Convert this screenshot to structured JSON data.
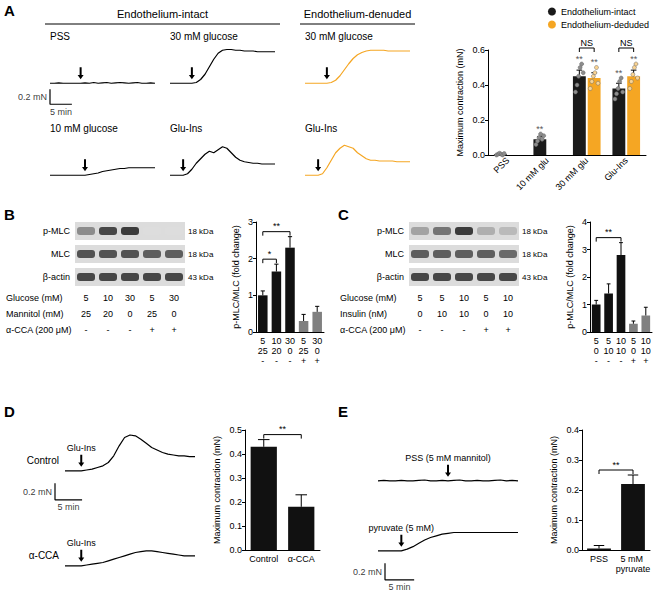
{
  "chart_data": [
    {
      "panel": "A",
      "type": "line",
      "x": [
        0,
        1,
        2,
        3,
        4,
        5,
        6,
        7,
        8,
        9,
        10,
        11,
        12,
        13,
        14,
        15,
        16,
        17,
        18,
        19,
        20,
        21,
        22,
        23,
        24
      ],
      "xlim": [
        0,
        24
      ],
      "ylim": [
        -0.05,
        0.55
      ],
      "tick_labels": false,
      "groups": [
        "Endothelium-intact",
        "Endothelium-denuded"
      ],
      "scale_bar": {
        "x": 5,
        "x_label": "5 min",
        "y": 0.2,
        "y_label": "0.2 mN"
      },
      "series": [
        {
          "name": "PSS",
          "group": "Endothelium-intact",
          "color": "#000000",
          "arrow_at": 7,
          "values": [
            0,
            0,
            0.005,
            0,
            0,
            0,
            0,
            0,
            0.005,
            0,
            0.01,
            0,
            0.005,
            0.01,
            0,
            0.005,
            0.01,
            0.005,
            0,
            0.005,
            0.01,
            0,
            0,
            0.005,
            0
          ]
        },
        {
          "name": "30 mM glucose",
          "group": "Endothelium-intact",
          "color": "#000000",
          "arrow_at": 5,
          "values": [
            0,
            0,
            0,
            0,
            0,
            0,
            0.01,
            0.05,
            0.12,
            0.22,
            0.32,
            0.4,
            0.44,
            0.45,
            0.45,
            0.44,
            0.44,
            0.43,
            0.43,
            0.43,
            0.42,
            0.42,
            0.42,
            0.42,
            0.42
          ]
        },
        {
          "name": "10 mM glucose",
          "group": "Endothelium-intact",
          "color": "#000000",
          "arrow_at": 8,
          "values": [
            0,
            0,
            0,
            0,
            0,
            0,
            0,
            0,
            0,
            0.01,
            0.02,
            0.03,
            0.05,
            0.06,
            0.07,
            0.08,
            0.09,
            0.09,
            0.1,
            0.1,
            0.1,
            0.1,
            0.1,
            0.1,
            0.1
          ]
        },
        {
          "name": "Glu-Ins",
          "group": "Endothelium-intact",
          "color": "#000000",
          "arrow_at": 3,
          "values": [
            0,
            0,
            0,
            0,
            0.02,
            0.08,
            0.16,
            0.22,
            0.28,
            0.32,
            0.3,
            0.34,
            0.38,
            0.36,
            0.3,
            0.24,
            0.2,
            0.18,
            0.17,
            0.16,
            0.16,
            0.15,
            0.15,
            0.15,
            0.15
          ]
        },
        {
          "name": "30 mM glucose",
          "group": "Endothelium-denuded",
          "color": "#f5a623",
          "arrow_at": 5,
          "values": [
            0,
            0,
            0,
            0,
            0,
            0,
            0.01,
            0.04,
            0.1,
            0.18,
            0.26,
            0.33,
            0.38,
            0.41,
            0.43,
            0.44,
            0.44,
            0.44,
            0.44,
            0.43,
            0.43,
            0.43,
            0.43,
            0.43,
            0.43
          ]
        },
        {
          "name": "Glu-Ins",
          "group": "Endothelium-denuded",
          "color": "#f5a623",
          "arrow_at": 3,
          "values": [
            0,
            0,
            0,
            0,
            0.02,
            0.1,
            0.2,
            0.3,
            0.36,
            0.4,
            0.38,
            0.36,
            0.3,
            0.26,
            0.22,
            0.2,
            0.2,
            0.19,
            0.19,
            0.19,
            0.19,
            0.18,
            0.18,
            0.18,
            0.18
          ]
        }
      ]
    },
    {
      "panel": "A",
      "type": "bar",
      "ylabel": "Maximum contraction (mN)",
      "categories": [
        "PSS",
        "10 mM glu",
        "30 mM glu",
        "Glu-Ins"
      ],
      "ylim": [
        0,
        0.6
      ],
      "yticks": [
        {
          "value": 0,
          "label": "0.0"
        },
        0.2,
        0.4,
        0.6
      ],
      "grid": false,
      "legend": "top-right",
      "series": [
        {
          "name": "Endothelium-intact",
          "color": "#1a1a1a",
          "values": [
            0.005,
            0.09,
            0.45,
            0.38
          ],
          "errors": [
            0.003,
            0.015,
            0.035,
            0.03
          ],
          "points": [
            [
              0,
              0.005,
              0.01,
              0.005,
              0,
              0.008
            ],
            [
              0.06,
              0.08,
              0.1,
              0.12,
              0.09,
              0.11
            ],
            [
              0.36,
              0.4,
              0.45,
              0.5,
              0.52,
              0.47
            ],
            [
              0.32,
              0.35,
              0.38,
              0.42,
              0.44,
              0.36
            ]
          ],
          "annotations": [
            null,
            "**",
            "**",
            "**"
          ]
        },
        {
          "name": "Endothelium-deduded",
          "color": "#f5a623",
          "values": [
            null,
            null,
            0.44,
            0.45
          ],
          "errors": [
            null,
            null,
            0.03,
            0.035
          ],
          "points": [
            null,
            null,
            [
              0.38,
              0.42,
              0.45,
              0.47,
              0.5,
              0.41
            ],
            [
              0.38,
              0.42,
              0.46,
              0.5,
              0.52,
              0.44
            ]
          ],
          "annotations": [
            null,
            null,
            "**",
            "**"
          ]
        }
      ],
      "brackets": [
        {
          "from": "30 mM glu",
          "to": "30 mM glu",
          "series": [
            "Endothelium-intact",
            "Endothelium-deduded"
          ],
          "text": "NS"
        },
        {
          "from": "Glu-Ins",
          "to": "Glu-Ins",
          "series": [
            "Endothelium-intact",
            "Endothelium-deduded"
          ],
          "text": "NS"
        }
      ]
    },
    {
      "panel": "B",
      "type": "blot",
      "rows": [
        {
          "label": "p-MLC",
          "size": "18 kDa",
          "bands": [
            0.5,
            0.8,
            0.85,
            0.15,
            0.15
          ]
        },
        {
          "label": "MLC",
          "size": "18 kDa",
          "bands": [
            0.75,
            0.75,
            0.75,
            0.7,
            0.7
          ]
        },
        {
          "label": "β-actin",
          "size": "43 kDa",
          "bands": [
            0.8,
            0.8,
            0.8,
            0.8,
            0.8
          ]
        }
      ],
      "conditions": [
        {
          "label": "Glucose (mM)",
          "cells": [
            "5",
            "10",
            "30",
            "5",
            "30"
          ]
        },
        {
          "label": "Mannitol (mM)",
          "cells": [
            "25",
            "20",
            "0",
            "25",
            "0"
          ]
        },
        {
          "label": "α-CCA (200 μM)",
          "cells": [
            "-",
            "-",
            "-",
            "+",
            "+"
          ]
        }
      ]
    },
    {
      "panel": "B",
      "type": "bar",
      "ylabel": "p-MLC/MLC (fold change)",
      "categories": [
        "5\n25\n-",
        "10\n20\n-",
        "30\n0\n-",
        "5\n25\n+",
        "30\n0\n+"
      ],
      "values": [
        1.0,
        1.65,
        2.3,
        0.3,
        0.55
      ],
      "errors": [
        0.12,
        0.2,
        0.3,
        0.18,
        0.15
      ],
      "colors": [
        "#111111",
        "#111111",
        "#111111",
        "#808080",
        "#808080"
      ],
      "ylim": [
        0,
        3
      ],
      "yticks": [
        0,
        1,
        2,
        3
      ],
      "grid": false,
      "brackets": [
        {
          "from": "5\n25\n-",
          "to": "10\n20\n-",
          "text": "*"
        },
        {
          "from": "5\n25\n-",
          "to": "30\n0\n-",
          "text": "**"
        }
      ]
    },
    {
      "panel": "C",
      "type": "blot",
      "rows": [
        {
          "label": "p-MLC",
          "size": "18 kDa",
          "bands": [
            0.4,
            0.6,
            0.85,
            0.35,
            0.3
          ]
        },
        {
          "label": "MLC",
          "size": "18 kDa",
          "bands": [
            0.7,
            0.7,
            0.7,
            0.7,
            0.65
          ]
        },
        {
          "label": "β-actin",
          "size": "43 kDa",
          "bands": [
            0.8,
            0.8,
            0.8,
            0.8,
            0.8
          ]
        }
      ],
      "conditions": [
        {
          "label": "Glucose (mM)",
          "cells": [
            "5",
            "5",
            "10",
            "5",
            "10"
          ]
        },
        {
          "label": "Insulin (nM)",
          "cells": [
            "0",
            "10",
            "10",
            "0",
            "10"
          ]
        },
        {
          "label": "α-CCA (200 μM)",
          "cells": [
            "-",
            "-",
            "-",
            "+",
            "+"
          ]
        }
      ]
    },
    {
      "panel": "C",
      "type": "bar",
      "ylabel": "p-MLC/MLC (fold change)",
      "categories": [
        "5\n0\n-",
        "5\n10\n-",
        "10\n10\n-",
        "5\n0\n+",
        "10\n10\n+"
      ],
      "values": [
        1.0,
        1.4,
        2.8,
        0.3,
        0.6
      ],
      "errors": [
        0.15,
        0.35,
        0.45,
        0.1,
        0.3
      ],
      "colors": [
        "#111111",
        "#111111",
        "#111111",
        "#808080",
        "#808080"
      ],
      "ylim": [
        0,
        4
      ],
      "yticks": [
        0,
        1,
        2,
        3,
        4
      ],
      "grid": false,
      "brackets": [
        {
          "from": "5\n0\n-",
          "to": "10\n10\n-",
          "text": "**"
        }
      ]
    },
    {
      "panel": "D",
      "type": "line",
      "x": [
        0,
        1,
        2,
        3,
        4,
        5,
        6,
        7,
        8,
        9,
        10,
        11,
        12,
        13,
        14,
        15,
        16,
        17,
        18,
        19,
        20,
        21,
        22,
        23,
        24
      ],
      "xlim": [
        0,
        24
      ],
      "ylim": [
        -0.05,
        0.55
      ],
      "tick_labels": false,
      "scale_bar": {
        "x": 5,
        "x_label": "5 min",
        "y": 0.2,
        "y_label": "0.2 mN"
      },
      "series": [
        {
          "name": "Control",
          "arrow_label": "Glu-Ins",
          "color": "#000000",
          "arrow_at": 3,
          "values": [
            0,
            0,
            0,
            0,
            0.01,
            0.02,
            0.04,
            0.06,
            0.1,
            0.18,
            0.3,
            0.4,
            0.43,
            0.42,
            0.38,
            0.33,
            0.28,
            0.25,
            0.22,
            0.2,
            0.19,
            0.18,
            0.18,
            0.17,
            0.17
          ]
        },
        {
          "name": "α-CCA",
          "arrow_label": "Glu-Ins",
          "color": "#000000",
          "arrow_at": 3,
          "values": [
            0,
            0,
            0,
            0,
            0.01,
            0.02,
            0.03,
            0.04,
            0.06,
            0.08,
            0.1,
            0.12,
            0.14,
            0.16,
            0.17,
            0.18,
            0.18,
            0.17,
            0.16,
            0.15,
            0.14,
            0.13,
            0.12,
            0.12,
            0.12
          ]
        }
      ]
    },
    {
      "panel": "D",
      "type": "bar",
      "ylabel": "Maximum contraction (mN)",
      "categories": [
        "Control",
        "α-CCA"
      ],
      "values": [
        0.43,
        0.18
      ],
      "errors": [
        0.03,
        0.05
      ],
      "color": "#111111",
      "ylim": [
        0,
        0.5
      ],
      "yticks": [
        {
          "value": 0,
          "label": "0.0"
        },
        0.1,
        0.2,
        0.3,
        0.4,
        0.5
      ],
      "grid": false,
      "brackets": [
        {
          "from": "Control",
          "to": "α-CCA",
          "text": "**"
        }
      ]
    },
    {
      "panel": "E",
      "type": "line",
      "x": [
        0,
        1,
        2,
        3,
        4,
        5,
        6,
        7,
        8,
        9,
        10,
        11,
        12,
        13,
        14,
        15,
        16,
        17,
        18,
        19,
        20,
        21,
        22,
        23,
        24
      ],
      "xlim": [
        0,
        24
      ],
      "ylim": [
        -0.05,
        0.55
      ],
      "tick_labels": false,
      "scale_bar": {
        "x": 5,
        "x_label": "5 min",
        "y": 0.2,
        "y_label": "0.2 mN"
      },
      "series": [
        {
          "arrow_label": "PSS (5 mM mannitol)",
          "color": "#000000",
          "arrow_at": 12,
          "values": [
            0,
            0.005,
            0,
            0,
            0.005,
            0,
            0,
            0.005,
            0.01,
            0,
            0,
            0.005,
            0,
            0.005,
            0.01,
            0,
            0,
            0.005,
            0,
            0,
            0.005,
            0.01,
            0,
            0.005,
            0
          ]
        },
        {
          "arrow_label": "pyruvate (5 mM)",
          "color": "#000000",
          "arrow_at": 4,
          "values": [
            0,
            0,
            0,
            0,
            0,
            0.02,
            0.05,
            0.09,
            0.13,
            0.16,
            0.18,
            0.2,
            0.21,
            0.22,
            0.22,
            0.22,
            0.22,
            0.22,
            0.22,
            0.22,
            0.22,
            0.22,
            0.22,
            0.22,
            0.22
          ]
        }
      ]
    },
    {
      "panel": "E",
      "type": "bar",
      "ylabel": "Maximum contraction (mN)",
      "categories": [
        "PSS",
        "5 mM pyruvate"
      ],
      "values": [
        0.005,
        0.22
      ],
      "errors": [
        0.01,
        0.03
      ],
      "color": "#111111",
      "ylim": [
        0,
        0.4
      ],
      "yticks": [
        {
          "value": 0,
          "label": "0.0"
        },
        0.1,
        0.2,
        0.3,
        0.4
      ],
      "grid": false,
      "brackets": [
        {
          "from": "PSS",
          "to": "5 mM pyruvate",
          "text": "**"
        }
      ]
    }
  ]
}
